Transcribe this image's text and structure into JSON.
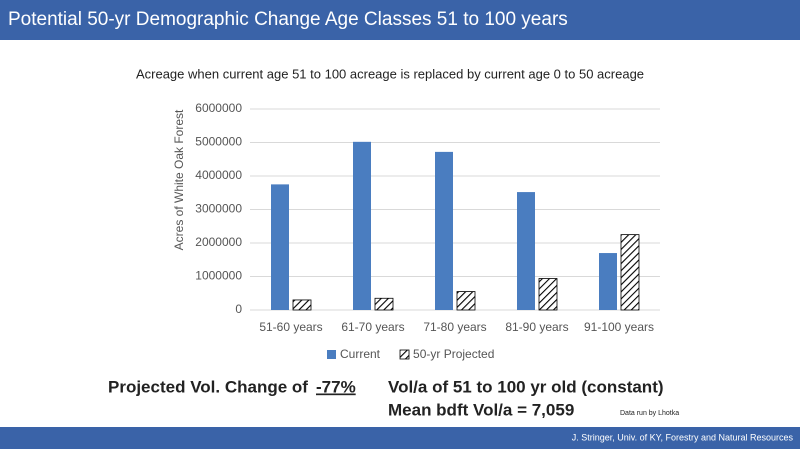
{
  "slide": {
    "title": "Potential 50-yr Demographic Change Age Classes 51 to 100 years",
    "change_label": "Projected Vol. Change of",
    "change_value": "-77%",
    "vol_note": "Vol/a of 51 to 100 yr old (constant)",
    "mean_note": "Mean bdft Vol/a = 7,059",
    "credit": "Data run by Lhotka",
    "footer": "J. Stringer, Univ. of KY, Forestry and Natural Resources"
  },
  "chart_data": {
    "type": "bar",
    "title": "Acreage when current age 51 to 100 acreage is replaced by current age 0 to 50 acreage",
    "y_label": "Acres of White Oak Forest",
    "categories": [
      "51-60 years",
      "61-70 years",
      "71-80 years",
      "81-90 years",
      "91-100 years"
    ],
    "series": [
      {
        "name": "Current",
        "color": "#4a7dc0",
        "values": [
          3750000,
          5020000,
          4720000,
          3520000,
          1700000
        ]
      },
      {
        "name": "50-yr Projected",
        "color": "#000000",
        "pattern": "hatch",
        "values": [
          300000,
          350000,
          550000,
          940000,
          2250000
        ]
      }
    ],
    "ylim": [
      0,
      6000000
    ],
    "yticks": [
      0,
      1000000,
      2000000,
      3000000,
      4000000,
      5000000,
      6000000
    ],
    "grid": true,
    "legend": "bottom"
  }
}
